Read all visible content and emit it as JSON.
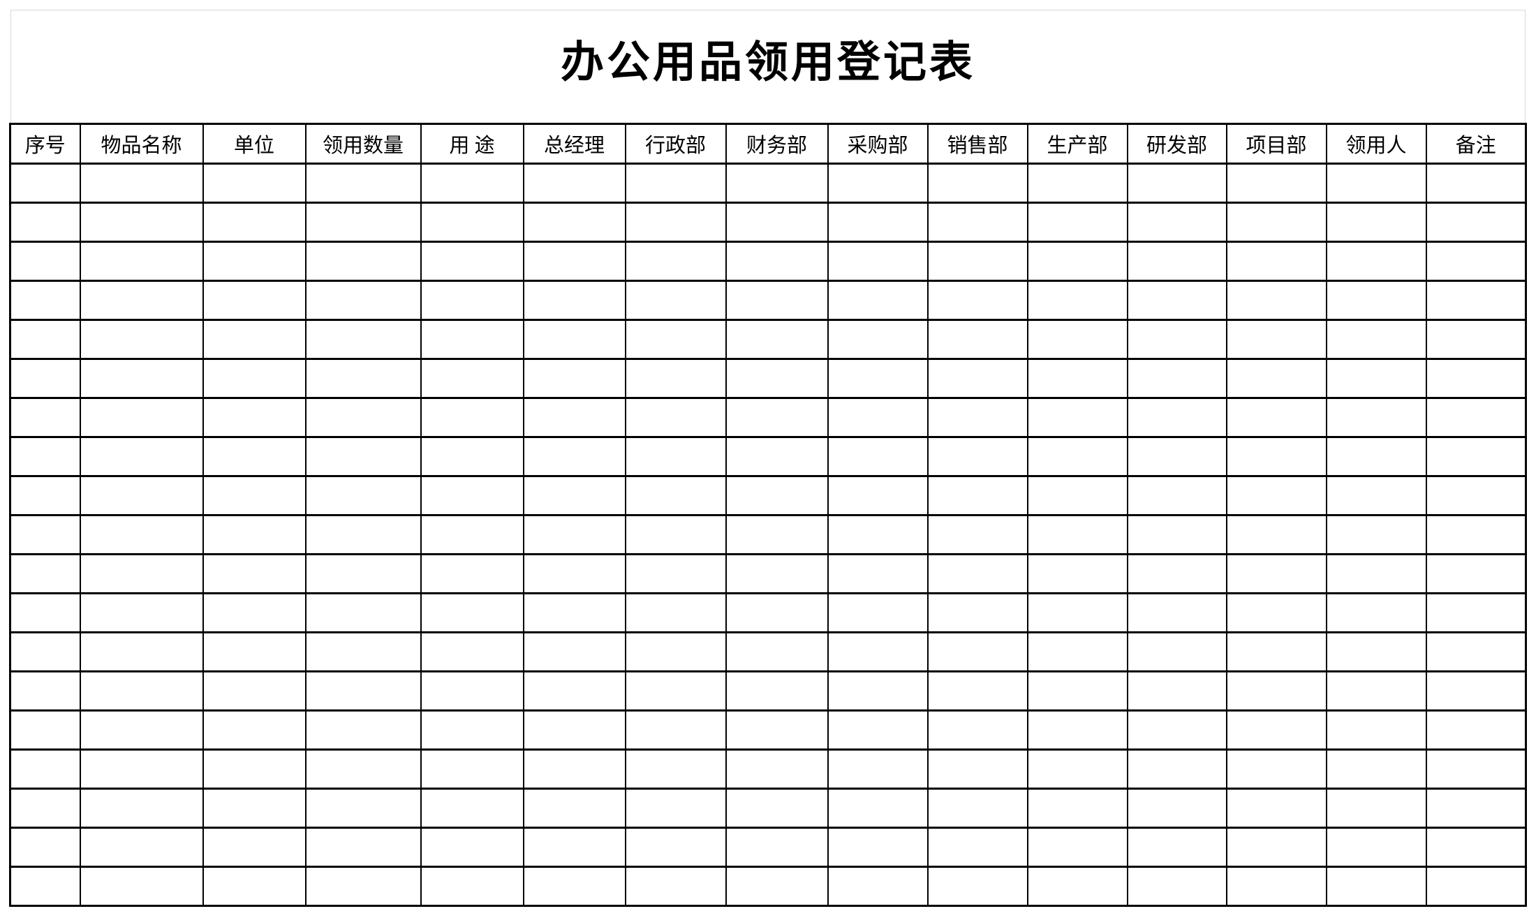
{
  "title": "办公用品领用登记表",
  "table": {
    "columns": [
      {
        "key": "serial-number",
        "label": "序号"
      },
      {
        "key": "item-name",
        "label": "物品名称"
      },
      {
        "key": "unit",
        "label": "单位"
      },
      {
        "key": "quantity",
        "label": "领用数量"
      },
      {
        "key": "purpose",
        "label": "用  途"
      },
      {
        "key": "general-manager",
        "label": "总经理"
      },
      {
        "key": "admin-dept",
        "label": "行政部"
      },
      {
        "key": "finance-dept",
        "label": "财务部"
      },
      {
        "key": "purchasing-dept",
        "label": "采购部"
      },
      {
        "key": "sales-dept",
        "label": "销售部"
      },
      {
        "key": "production-dept",
        "label": "生产部"
      },
      {
        "key": "rnd-dept",
        "label": "研发部"
      },
      {
        "key": "project-dept",
        "label": "项目部"
      },
      {
        "key": "recipient",
        "label": "领用人"
      },
      {
        "key": "remarks",
        "label": "备注"
      }
    ],
    "row_count": 19,
    "cell_value": ""
  },
  "colors": {
    "grid_line": "#000000",
    "page_frame_line": "#d9d9d9",
    "background": "#ffffff",
    "text": "#000000"
  }
}
